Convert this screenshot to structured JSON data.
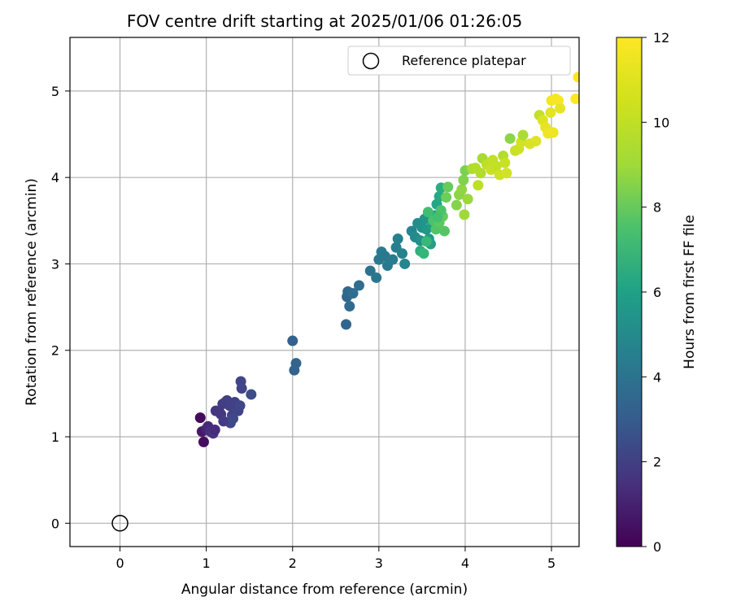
{
  "chart_data": {
    "type": "scatter",
    "title": "FOV centre drift starting at 2025/01/06 01:26:05",
    "xlabel": "Angular distance from reference (arcmin)",
    "ylabel": "Rotation from reference (arcmin)",
    "xlim": [
      -0.58,
      5.32
    ],
    "ylim": [
      -0.27,
      5.62
    ],
    "xticks": [
      0,
      1,
      2,
      3,
      4,
      5
    ],
    "yticks": [
      0,
      1,
      2,
      3,
      4,
      5
    ],
    "grid": true,
    "legend": {
      "position": "top-right",
      "entries": [
        "Reference platepar"
      ]
    },
    "reference_point": {
      "label": "Reference platepar",
      "x": 0,
      "y": 0
    },
    "colorbar": {
      "label": "Hours from first FF file",
      "colormap": "viridis",
      "range": [
        0,
        12
      ],
      "ticks": [
        0,
        2,
        4,
        6,
        8,
        10,
        12
      ]
    },
    "series": [
      {
        "columns": [
          "x",
          "y",
          "hours"
        ],
        "points": [
          [
            0.93,
            1.22,
            0.3
          ],
          [
            0.97,
            0.94,
            0.4
          ],
          [
            0.95,
            1.06,
            0.8
          ],
          [
            1.0,
            1.09,
            1.2
          ],
          [
            1.02,
            1.12,
            1.4
          ],
          [
            1.05,
            1.06,
            1.6
          ],
          [
            1.08,
            1.04,
            1.8
          ],
          [
            1.11,
            1.3,
            1.9
          ],
          [
            1.15,
            1.29,
            2.0
          ],
          [
            1.17,
            1.26,
            2.0
          ],
          [
            1.19,
            1.38,
            2.1
          ],
          [
            1.22,
            1.4,
            2.2
          ],
          [
            1.24,
            1.42,
            2.2
          ],
          [
            1.27,
            1.36,
            2.3
          ],
          [
            1.3,
            1.25,
            2.3
          ],
          [
            1.28,
            1.16,
            2.5
          ],
          [
            1.33,
            1.4,
            2.3
          ],
          [
            1.37,
            1.3,
            2.4
          ],
          [
            1.39,
            1.36,
            2.5
          ],
          [
            1.4,
            1.64,
            2.4
          ],
          [
            1.41,
            1.56,
            2.5
          ],
          [
            1.52,
            1.49,
            2.8
          ],
          [
            1.1,
            1.08,
            1.5
          ],
          [
            1.2,
            1.18,
            2.1
          ],
          [
            1.31,
            1.21,
            2.6
          ],
          [
            2.0,
            2.11,
            3.7
          ],
          [
            2.02,
            1.77,
            3.8
          ],
          [
            2.04,
            1.85,
            3.9
          ],
          [
            2.62,
            2.3,
            3.9
          ],
          [
            2.63,
            2.62,
            4.0
          ],
          [
            2.64,
            2.68,
            4.1
          ],
          [
            2.66,
            2.51,
            4.2
          ],
          [
            2.7,
            2.66,
            4.3
          ],
          [
            2.77,
            2.75,
            4.3
          ],
          [
            2.9,
            2.92,
            4.6
          ],
          [
            2.97,
            2.84,
            4.7
          ],
          [
            3.0,
            3.05,
            4.8
          ],
          [
            3.03,
            3.14,
            4.9
          ],
          [
            3.07,
            3.09,
            4.8
          ],
          [
            3.1,
            2.98,
            4.9
          ],
          [
            3.16,
            3.05,
            5.0
          ],
          [
            3.2,
            3.19,
            5.1
          ],
          [
            3.22,
            3.29,
            5.2
          ],
          [
            3.27,
            3.12,
            5.3
          ],
          [
            3.3,
            3.0,
            5.4
          ],
          [
            3.38,
            3.38,
            5.5
          ],
          [
            3.42,
            3.31,
            5.7
          ],
          [
            3.45,
            3.47,
            5.8
          ],
          [
            3.48,
            3.27,
            5.9
          ],
          [
            3.5,
            3.42,
            6.0
          ],
          [
            3.53,
            3.52,
            6.2
          ],
          [
            3.55,
            3.4,
            6.3
          ],
          [
            3.58,
            3.29,
            6.5
          ],
          [
            3.6,
            3.23,
            6.8
          ],
          [
            3.62,
            3.45,
            6.6
          ],
          [
            3.65,
            3.56,
            6.9
          ],
          [
            3.67,
            3.69,
            7.1
          ],
          [
            3.7,
            3.78,
            7.3
          ],
          [
            3.72,
            3.88,
            7.5
          ],
          [
            3.48,
            3.15,
            7.6
          ],
          [
            3.52,
            3.12,
            7.9
          ],
          [
            3.55,
            3.26,
            8.0
          ],
          [
            3.57,
            3.6,
            8.3
          ],
          [
            3.63,
            3.5,
            8.5
          ],
          [
            3.66,
            3.4,
            8.7
          ],
          [
            3.7,
            3.48,
            8.9
          ],
          [
            3.74,
            3.55,
            9.1
          ],
          [
            3.76,
            3.38,
            8.8
          ],
          [
            3.78,
            3.77,
            9.3
          ],
          [
            3.8,
            3.89,
            9.2
          ],
          [
            3.72,
            3.62,
            8.6
          ],
          [
            3.68,
            3.54,
            8.4
          ],
          [
            3.9,
            3.68,
            9.8
          ],
          [
            3.93,
            3.8,
            9.9
          ],
          [
            3.96,
            3.86,
            10.0
          ],
          [
            3.98,
            3.97,
            9.7
          ],
          [
            4.0,
            4.08,
            9.6
          ],
          [
            4.03,
            3.75,
            10.2
          ],
          [
            3.99,
            3.57,
            10.3
          ],
          [
            4.08,
            4.1,
            10.5
          ],
          [
            4.12,
            4.11,
            10.6
          ],
          [
            4.15,
            3.91,
            10.8
          ],
          [
            4.18,
            4.05,
            10.6
          ],
          [
            4.2,
            4.22,
            10.4
          ],
          [
            4.25,
            4.15,
            10.8
          ],
          [
            4.3,
            4.09,
            11.0
          ],
          [
            4.32,
            4.2,
            10.9
          ],
          [
            4.36,
            4.13,
            10.9
          ],
          [
            4.4,
            4.03,
            11.1
          ],
          [
            4.44,
            4.25,
            10.6
          ],
          [
            4.46,
            4.17,
            11.0
          ],
          [
            4.48,
            4.05,
            11.2
          ],
          [
            4.52,
            4.45,
            9.9
          ],
          [
            4.58,
            4.31,
            11.0
          ],
          [
            4.62,
            4.33,
            11.1
          ],
          [
            4.65,
            4.41,
            11.2
          ],
          [
            4.67,
            4.49,
            10.5
          ],
          [
            4.75,
            4.39,
            11.3
          ],
          [
            4.82,
            4.42,
            11.4
          ],
          [
            4.86,
            4.72,
            10.9
          ],
          [
            4.9,
            4.66,
            11.4
          ],
          [
            4.93,
            4.58,
            11.6
          ],
          [
            4.96,
            4.51,
            11.7
          ],
          [
            4.99,
            4.75,
            11.5
          ],
          [
            5.0,
            4.89,
            11.8
          ],
          [
            5.02,
            4.52,
            11.7
          ],
          [
            5.05,
            4.91,
            11.9
          ],
          [
            5.08,
            4.89,
            11.9
          ],
          [
            5.1,
            4.8,
            11.6
          ],
          [
            5.28,
            4.91,
            12.0
          ],
          [
            5.31,
            5.16,
            12.0
          ]
        ]
      }
    ]
  }
}
